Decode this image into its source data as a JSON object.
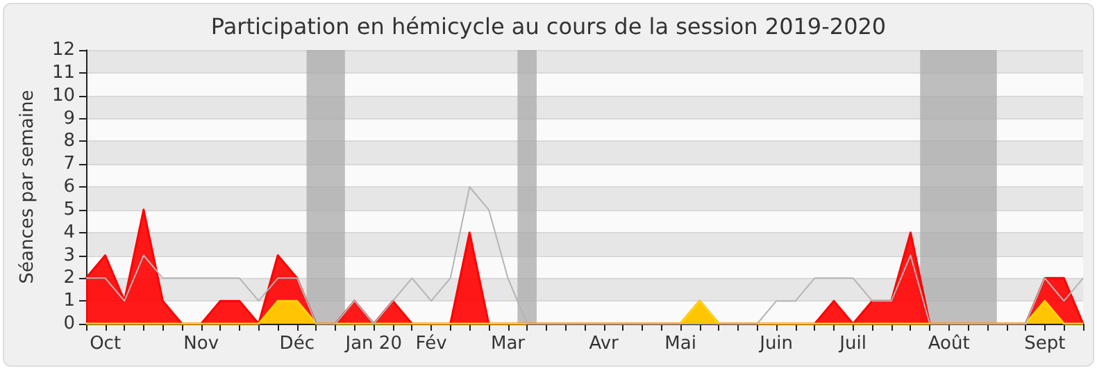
{
  "chart_data": {
    "type": "area",
    "title": "Participation en hémicycle au cours de la session 2019-2020",
    "ylabel": "Séances par semaine",
    "x": [
      "2019-09-30",
      "2019-10-07",
      "2019-10-14",
      "2019-10-21",
      "2019-10-28",
      "2019-11-04",
      "2019-11-11",
      "2019-11-18",
      "2019-11-25",
      "2019-12-02",
      "2019-12-09",
      "2019-12-16",
      "2019-12-23",
      "2019-12-30",
      "2020-01-06",
      "2020-01-13",
      "2020-01-20",
      "2020-01-27",
      "2020-02-03",
      "2020-02-10",
      "2020-02-17",
      "2020-02-24",
      "2020-03-02",
      "2020-03-09",
      "2020-03-16",
      "2020-03-23",
      "2020-03-30",
      "2020-04-06",
      "2020-04-13",
      "2020-04-20",
      "2020-04-27",
      "2020-05-04",
      "2020-05-11",
      "2020-05-18",
      "2020-05-25",
      "2020-06-01",
      "2020-06-08",
      "2020-06-15",
      "2020-06-22",
      "2020-06-29",
      "2020-07-06",
      "2020-07-13",
      "2020-07-20",
      "2020-07-27",
      "2020-08-03",
      "2020-08-10",
      "2020-08-17",
      "2020-08-24",
      "2020-08-31",
      "2020-09-07",
      "2020-09-14",
      "2020-09-21",
      "2020-09-28"
    ],
    "series": [
      {
        "type": "line",
        "color": "#b4b4b4",
        "values": [
          2,
          2,
          1,
          3,
          2,
          2,
          2,
          2,
          2,
          1,
          2,
          2,
          0,
          0,
          1,
          0,
          1,
          2,
          1,
          2,
          6,
          5,
          2,
          0,
          0,
          0,
          0,
          0,
          0,
          0,
          0,
          0,
          0,
          0,
          0,
          0,
          1,
          1,
          2,
          2,
          2,
          1,
          1,
          3,
          0,
          0,
          0,
          0,
          0,
          0,
          2,
          1,
          2
        ]
      },
      {
        "color": "#ff0000",
        "values": [
          2,
          3,
          1,
          5,
          1,
          0,
          0,
          1,
          1,
          0,
          3,
          2,
          0,
          0,
          1,
          0,
          1,
          0,
          0,
          0,
          4,
          0,
          0,
          0,
          0,
          0,
          0,
          0,
          0,
          0,
          0,
          0,
          1,
          0,
          0,
          0,
          0,
          0,
          0,
          1,
          0,
          1,
          1,
          4,
          0,
          0,
          0,
          0,
          0,
          0,
          2,
          2,
          0
        ]
      },
      {
        "color": "#ffd700",
        "values": [
          0,
          0,
          0,
          0,
          0,
          0,
          0,
          0,
          0,
          0,
          1,
          1,
          0,
          0,
          0,
          0,
          0,
          0,
          0,
          0,
          0,
          0,
          0,
          0,
          0,
          0,
          0,
          0,
          0,
          0,
          0,
          0,
          1,
          0,
          0,
          0,
          0,
          0,
          0,
          0,
          0,
          0,
          0,
          0,
          0,
          0,
          0,
          0,
          0,
          0,
          1,
          0,
          0
        ]
      }
    ],
    "xlim": [
      "2019-09-30",
      "2020-09-28"
    ],
    "xticks": [
      {
        "value": "2019-10-07",
        "label": "Oct"
      },
      {
        "value": "2019-11-11",
        "label": "Nov"
      },
      {
        "value": "2019-12-16",
        "label": "Déc"
      },
      {
        "value": "2020-01-13",
        "label": "Jan 20"
      },
      {
        "value": "2020-02-03",
        "label": "Fév"
      },
      {
        "value": "2020-03-02",
        "label": "Mar"
      },
      {
        "value": "2020-04-06",
        "label": "Avr"
      },
      {
        "value": "2020-05-04",
        "label": "Mai"
      },
      {
        "value": "2020-06-08",
        "label": "Juin"
      },
      {
        "value": "2020-07-06",
        "label": "Juil"
      },
      {
        "value": "2020-08-10",
        "label": "Août"
      },
      {
        "value": "2020-09-14",
        "label": "Sept"
      }
    ],
    "ylim": [
      0,
      12
    ],
    "yticks": [
      0,
      1,
      2,
      3,
      4,
      5,
      6,
      7,
      8,
      9,
      10,
      11,
      12
    ],
    "bands": [
      {
        "axis": "x",
        "from": "2019-12-19T12:00",
        "to": "2020-01-02T12:00",
        "color": "#aaaaaa"
      },
      {
        "axis": "x",
        "from": "2020-03-05T12:00",
        "to": "2020-03-12T12:00",
        "color": "#aaaaaa"
      },
      {
        "axis": "x",
        "from": "2020-07-30T12:00",
        "to": "2020-08-27T12:00",
        "color": "#aaaaaa"
      }
    ],
    "grid": "y",
    "legend": false,
    "marker": "none"
  }
}
